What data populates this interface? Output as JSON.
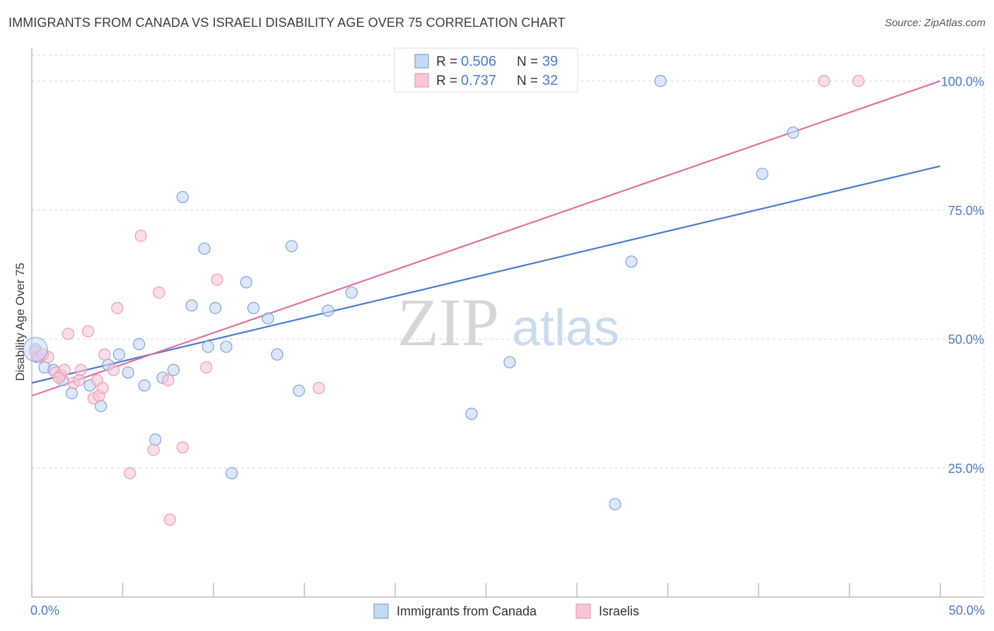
{
  "title": "IMMIGRANTS FROM CANADA VS ISRAELI DISABILITY AGE OVER 75 CORRELATION CHART",
  "source": "Source: ZipAtlas.com",
  "watermark": {
    "zip": "ZIP",
    "atlas": "atlas"
  },
  "colors": {
    "blue": "#4a7bd0",
    "blue_fill": "#c5d8f3",
    "blue_stroke": "#7ea3dc",
    "pink": "#e0709a",
    "pink_fill": "#f7c6d6",
    "pink_stroke": "#ec9bb6",
    "grid": "#d8d8d8"
  },
  "legend": {
    "rows": [
      {
        "r_label": "R = ",
        "r_value": "0.506",
        "n_label": "N = ",
        "n_value": "39"
      },
      {
        "r_label": "R = ",
        "r_value": "0.737",
        "n_label": "N = ",
        "n_value": "32"
      }
    ]
  },
  "chart_data": {
    "type": "scatter",
    "title": "IMMIGRANTS FROM CANADA VS ISRAELI DISABILITY AGE OVER 75 CORRELATION CHART",
    "xlabel": "",
    "ylabel": "Disability Age Over 75",
    "xlim": [
      0,
      50
    ],
    "ylim": [
      0,
      105
    ],
    "x_tick_labels": [
      "0.0%",
      "50.0%"
    ],
    "y_ticks": [
      25,
      50,
      75,
      100
    ],
    "y_tick_labels": [
      "25.0%",
      "50.0%",
      "75.0%",
      "100.0%"
    ],
    "grid": true,
    "series": [
      {
        "name": "Immigrants from Canada",
        "color": "blue",
        "trend": {
          "x": [
            0,
            50
          ],
          "y": [
            41.5,
            83.5
          ]
        },
        "points": [
          [
            0.2,
            48.0
          ],
          [
            0.7,
            44.5
          ],
          [
            1.2,
            44.0
          ],
          [
            1.7,
            42.0
          ],
          [
            2.2,
            39.5
          ],
          [
            3.2,
            41.0
          ],
          [
            3.8,
            37.0
          ],
          [
            4.2,
            45.0
          ],
          [
            4.8,
            47.0
          ],
          [
            5.3,
            43.5
          ],
          [
            5.9,
            49.0
          ],
          [
            6.2,
            41.0
          ],
          [
            6.8,
            30.5
          ],
          [
            7.2,
            42.5
          ],
          [
            7.8,
            44.0
          ],
          [
            8.3,
            77.5
          ],
          [
            8.8,
            56.5
          ],
          [
            9.5,
            67.5
          ],
          [
            9.7,
            48.5
          ],
          [
            10.1,
            56.0
          ],
          [
            10.7,
            48.5
          ],
          [
            11.0,
            24.0
          ],
          [
            11.8,
            61.0
          ],
          [
            12.2,
            56.0
          ],
          [
            13.0,
            54.0
          ],
          [
            13.5,
            47.0
          ],
          [
            14.3,
            68.0
          ],
          [
            14.7,
            40.0
          ],
          [
            16.3,
            55.5
          ],
          [
            17.6,
            59.0
          ],
          [
            20.6,
            100.0
          ],
          [
            24.2,
            35.5
          ],
          [
            26.3,
            45.5
          ],
          [
            32.1,
            18.0
          ],
          [
            33.0,
            65.0
          ],
          [
            34.6,
            100.0
          ],
          [
            40.2,
            82.0
          ],
          [
            41.9,
            90.0
          ],
          [
            0.3,
            46.5
          ]
        ]
      },
      {
        "name": "Israelis",
        "color": "pink",
        "trend": {
          "x": [
            0,
            50
          ],
          "y": [
            39.0,
            100.0
          ]
        },
        "points": [
          [
            0.2,
            47.5
          ],
          [
            0.4,
            46.5
          ],
          [
            0.9,
            46.5
          ],
          [
            1.3,
            43.5
          ],
          [
            1.6,
            43.0
          ],
          [
            1.8,
            44.0
          ],
          [
            2.0,
            51.0
          ],
          [
            2.3,
            41.5
          ],
          [
            2.6,
            42.0
          ],
          [
            2.7,
            44.0
          ],
          [
            3.1,
            51.5
          ],
          [
            3.4,
            38.5
          ],
          [
            3.6,
            42.0
          ],
          [
            3.7,
            39.0
          ],
          [
            3.9,
            40.5
          ],
          [
            4.0,
            47.0
          ],
          [
            4.5,
            44.0
          ],
          [
            4.7,
            56.0
          ],
          [
            5.4,
            24.0
          ],
          [
            6.0,
            70.0
          ],
          [
            6.7,
            28.5
          ],
          [
            7.0,
            59.0
          ],
          [
            7.5,
            42.0
          ],
          [
            7.6,
            15.0
          ],
          [
            8.3,
            29.0
          ],
          [
            9.6,
            44.5
          ],
          [
            10.2,
            61.5
          ],
          [
            15.8,
            40.5
          ],
          [
            43.6,
            100.0
          ],
          [
            45.5,
            100.0
          ],
          [
            0.6,
            47.0
          ],
          [
            1.5,
            42.5
          ]
        ]
      }
    ]
  },
  "bottom_legend": [
    {
      "label": "Immigrants from Canada",
      "color": "blue"
    },
    {
      "label": "Israelis",
      "color": "pink"
    }
  ]
}
